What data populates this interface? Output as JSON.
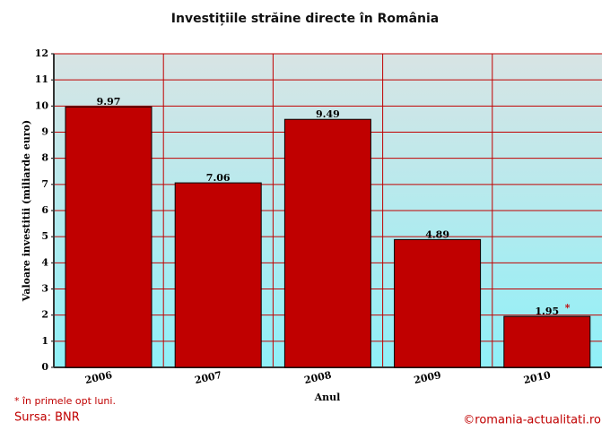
{
  "chart_data": {
    "type": "bar",
    "title": "Investițiile străine directe în România",
    "x_label": "Anul",
    "y_label": "Valoare investitii (miliarde euro)",
    "categories": [
      "2006",
      "2007",
      "2008",
      "2009",
      "2010"
    ],
    "values": [
      9.97,
      7.06,
      9.49,
      4.89,
      1.95
    ],
    "color": "#c00000",
    "ylim": [
      0,
      12
    ],
    "yticks": [
      0,
      1,
      2,
      3,
      4,
      5,
      6,
      7,
      8,
      9,
      10,
      11,
      12
    ],
    "grid": true,
    "grid_color": "#c00000",
    "annotation": "*",
    "footnote": "* în primele opt luni.",
    "source": "Sursa: BNR",
    "credit": "©romania-actualitati.ro"
  }
}
